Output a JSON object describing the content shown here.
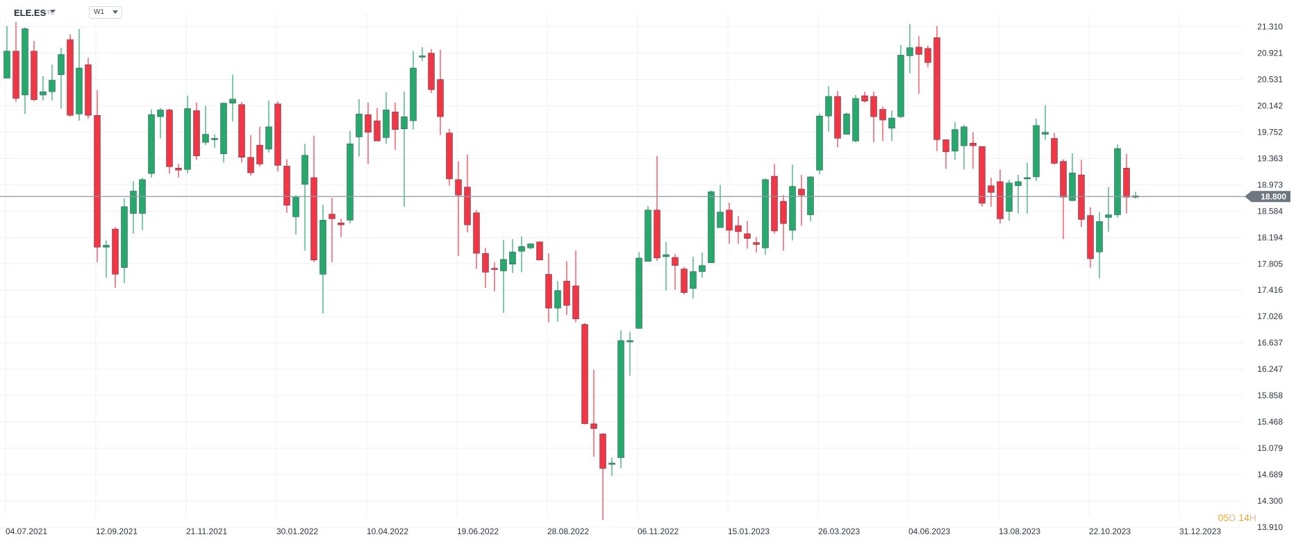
{
  "header": {
    "symbol": "ELE.ES",
    "symbol_suffix": "STC",
    "timeframe": "W1"
  },
  "countdown": {
    "days": "05",
    "days_unit": "D",
    "hours": "14",
    "hours_unit": "H"
  },
  "colors": {
    "up": "#26a96c",
    "down": "#f23645",
    "grid": "#eef0f3",
    "price_line": "#8f9aa3",
    "price_tag": "#6e7780",
    "axis_text": "#2b3440"
  },
  "chart_data": {
    "type": "candlestick",
    "title": "",
    "current_price": "18.800",
    "ylim": [
      13.91,
      21.5
    ],
    "y_ticks": [
      "21.310",
      "20.921",
      "20.531",
      "20.142",
      "19.752",
      "19.363",
      "18.973",
      "18.584",
      "18.194",
      "17.805",
      "17.416",
      "17.026",
      "16.637",
      "16.247",
      "15.858",
      "15.468",
      "15.079",
      "14.689",
      "14.300",
      "13.910"
    ],
    "x_tick_labels": [
      {
        "label": "04.07.2021",
        "index": 0
      },
      {
        "label": "12.09.2021",
        "index": 10
      },
      {
        "label": "21.11.2021",
        "index": 20
      },
      {
        "label": "30.01.2022",
        "index": 30
      },
      {
        "label": "10.04.2022",
        "index": 40
      },
      {
        "label": "19.06.2022",
        "index": 50
      },
      {
        "label": "28.08.2022",
        "index": 60
      },
      {
        "label": "06.11.2022",
        "index": 70
      },
      {
        "label": "15.01.2023",
        "index": 80
      },
      {
        "label": "26.03.2023",
        "index": 90
      },
      {
        "label": "04.06.2023",
        "index": 100
      },
      {
        "label": "13.08.2023",
        "index": 110
      },
      {
        "label": "22.10.2023",
        "index": 120
      },
      {
        "label": "31.12.2023",
        "index": 130
      }
    ],
    "candles": [
      [
        20.55,
        20.95,
        21.32,
        20.66
      ],
      [
        20.95,
        20.25,
        21.38,
        20.2
      ],
      [
        20.3,
        21.28,
        21.3,
        20.02
      ],
      [
        20.95,
        20.23,
        21.1,
        20.21
      ],
      [
        20.3,
        20.35,
        20.58,
        20.22
      ],
      [
        20.35,
        20.52,
        20.75,
        20.22
      ],
      [
        20.6,
        20.9,
        21.0,
        20.1
      ],
      [
        21.12,
        20.0,
        21.2,
        19.98
      ],
      [
        20.02,
        20.7,
        21.28,
        19.92
      ],
      [
        20.75,
        20.0,
        20.85,
        19.95
      ],
      [
        20.0,
        18.05,
        20.37,
        17.83
      ],
      [
        18.05,
        18.08,
        18.15,
        17.6
      ],
      [
        18.32,
        17.65,
        18.35,
        17.45
      ],
      [
        17.75,
        18.65,
        18.77,
        17.52
      ],
      [
        18.55,
        18.88,
        19.03,
        18.25
      ],
      [
        18.55,
        19.05,
        19.08,
        18.3
      ],
      [
        19.14,
        20.01,
        20.09,
        19.08
      ],
      [
        19.98,
        20.08,
        20.11,
        19.66
      ],
      [
        20.08,
        19.24,
        20.1,
        19.14
      ],
      [
        19.22,
        19.19,
        19.28,
        19.08
      ],
      [
        19.2,
        20.1,
        20.29,
        19.14
      ],
      [
        20.07,
        19.4,
        20.19,
        19.34
      ],
      [
        19.6,
        19.72,
        20.14,
        19.56
      ],
      [
        19.66,
        19.66,
        19.72,
        19.52
      ],
      [
        19.43,
        20.18,
        20.19,
        19.3
      ],
      [
        20.18,
        20.24,
        20.6,
        19.91
      ],
      [
        20.16,
        19.38,
        20.2,
        19.3
      ],
      [
        19.38,
        19.15,
        19.71,
        19.11
      ],
      [
        19.56,
        19.28,
        19.83,
        19.24
      ],
      [
        19.5,
        19.83,
        20.22,
        19.45
      ],
      [
        20.17,
        19.26,
        20.21,
        19.17
      ],
      [
        19.25,
        18.67,
        19.35,
        18.56
      ],
      [
        18.5,
        18.8,
        18.82,
        18.24
      ],
      [
        18.98,
        19.41,
        19.58,
        18.0
      ],
      [
        19.08,
        17.86,
        19.7,
        17.83
      ],
      [
        17.65,
        18.45,
        18.68,
        17.07
      ],
      [
        18.54,
        18.47,
        18.78,
        17.83
      ],
      [
        18.41,
        18.38,
        18.47,
        18.2
      ],
      [
        18.45,
        19.58,
        19.77,
        18.4
      ],
      [
        19.68,
        20.02,
        20.24,
        19.39
      ],
      [
        20.01,
        19.75,
        20.19,
        19.28
      ],
      [
        19.92,
        19.62,
        20.11,
        19.63
      ],
      [
        19.67,
        20.08,
        20.34,
        19.58
      ],
      [
        20.05,
        19.79,
        20.19,
        19.49
      ],
      [
        19.8,
        19.98,
        20.35,
        18.65
      ],
      [
        19.92,
        20.7,
        20.95,
        19.79
      ],
      [
        20.86,
        20.88,
        21.01,
        20.8
      ],
      [
        20.92,
        20.38,
        20.98,
        20.33
      ],
      [
        20.53,
        19.98,
        20.97,
        19.71
      ],
      [
        19.74,
        19.06,
        19.8,
        18.96
      ],
      [
        19.05,
        18.82,
        19.32,
        17.92
      ],
      [
        18.94,
        18.38,
        19.42,
        18.27
      ],
      [
        18.56,
        17.96,
        18.6,
        17.73
      ],
      [
        17.96,
        17.68,
        18.04,
        17.45
      ],
      [
        17.74,
        17.72,
        17.83,
        17.4
      ],
      [
        17.7,
        17.87,
        18.16,
        17.08
      ],
      [
        17.8,
        17.98,
        18.17,
        17.67
      ],
      [
        17.99,
        18.06,
        18.21,
        17.68
      ],
      [
        18.04,
        18.1,
        18.11,
        18.02
      ],
      [
        18.13,
        17.86,
        18.13,
        17.88
      ],
      [
        17.65,
        17.15,
        17.96,
        16.94
      ],
      [
        17.15,
        17.41,
        17.55,
        16.95
      ],
      [
        17.55,
        17.19,
        17.84,
        17.05
      ],
      [
        17.48,
        16.99,
        18.0,
        16.94
      ],
      [
        16.91,
        15.44,
        16.93,
        15.43
      ],
      [
        15.44,
        15.37,
        16.24,
        14.95
      ],
      [
        15.29,
        14.78,
        15.3,
        14.02
      ],
      [
        14.85,
        14.86,
        14.94,
        14.67
      ],
      [
        14.94,
        16.67,
        16.82,
        14.78
      ],
      [
        16.66,
        16.67,
        16.8,
        16.15
      ],
      [
        16.85,
        17.89,
        17.98,
        16.85
      ],
      [
        17.84,
        18.6,
        18.66,
        17.85
      ],
      [
        18.6,
        17.89,
        19.4,
        17.85
      ],
      [
        17.91,
        17.94,
        18.13,
        17.41
      ],
      [
        17.9,
        17.78,
        17.95,
        17.42
      ],
      [
        17.73,
        17.38,
        17.76,
        17.35
      ],
      [
        17.44,
        17.69,
        17.91,
        17.29
      ],
      [
        17.69,
        17.78,
        17.97,
        17.6
      ],
      [
        17.82,
        18.87,
        18.89,
        17.82
      ],
      [
        18.34,
        18.57,
        18.97,
        18.35
      ],
      [
        18.6,
        18.3,
        18.71,
        18.1
      ],
      [
        18.37,
        18.28,
        18.51,
        18.1
      ],
      [
        18.25,
        18.18,
        18.44,
        18.03
      ],
      [
        18.12,
        18.09,
        18.2,
        17.97
      ],
      [
        18.04,
        19.05,
        19.07,
        17.94
      ],
      [
        19.1,
        18.29,
        19.28,
        18.25
      ],
      [
        18.73,
        18.4,
        18.82,
        18.0
      ],
      [
        18.3,
        18.95,
        19.27,
        18.15
      ],
      [
        18.91,
        18.82,
        19.12,
        18.37
      ],
      [
        18.53,
        19.09,
        19.1,
        18.43
      ],
      [
        19.19,
        19.99,
        20.03,
        19.13
      ],
      [
        19.99,
        20.28,
        20.43,
        19.76
      ],
      [
        20.28,
        19.66,
        20.36,
        19.53
      ],
      [
        19.72,
        20.02,
        20.04,
        19.78
      ],
      [
        19.62,
        20.25,
        20.3,
        19.6
      ],
      [
        20.29,
        20.21,
        20.35,
        20.19
      ],
      [
        20.28,
        19.98,
        20.35,
        19.6
      ],
      [
        20.09,
        19.93,
        20.13,
        19.62
      ],
      [
        19.81,
        19.96,
        20.07,
        19.62
      ],
      [
        19.98,
        20.89,
        21.04,
        19.96
      ],
      [
        20.88,
        21.0,
        21.35,
        20.62
      ],
      [
        21.01,
        20.9,
        21.17,
        20.32
      ],
      [
        20.99,
        20.78,
        21.03,
        20.71
      ],
      [
        21.15,
        19.64,
        21.32,
        19.47
      ],
      [
        19.64,
        19.46,
        19.56,
        19.21
      ],
      [
        19.47,
        19.79,
        19.9,
        19.34
      ],
      [
        19.55,
        19.83,
        19.86,
        19.2
      ],
      [
        19.59,
        19.55,
        19.75,
        19.21
      ],
      [
        19.54,
        18.7,
        19.54,
        18.65
      ],
      [
        18.96,
        18.86,
        19.08,
        18.65
      ],
      [
        19.02,
        18.47,
        19.2,
        18.4
      ],
      [
        18.58,
        19.0,
        19.05,
        18.44
      ],
      [
        18.96,
        19.02,
        19.12,
        18.55
      ],
      [
        19.07,
        19.08,
        19.3,
        18.55
      ],
      [
        19.09,
        19.85,
        19.95,
        19.03
      ],
      [
        19.72,
        19.75,
        20.15,
        19.64
      ],
      [
        19.66,
        19.29,
        19.74,
        19.27
      ],
      [
        19.32,
        18.79,
        19.35,
        18.17
      ],
      [
        18.74,
        19.15,
        19.44,
        18.73
      ],
      [
        19.12,
        18.46,
        19.34,
        18.35
      ],
      [
        18.52,
        17.88,
        18.64,
        17.75
      ],
      [
        17.98,
        18.43,
        18.57,
        17.59
      ],
      [
        18.49,
        18.53,
        18.94,
        18.28
      ],
      [
        18.53,
        19.51,
        19.57,
        18.49
      ],
      [
        19.22,
        18.79,
        19.43,
        18.55
      ],
      [
        18.81,
        18.81,
        18.87,
        18.77
      ]
    ]
  }
}
